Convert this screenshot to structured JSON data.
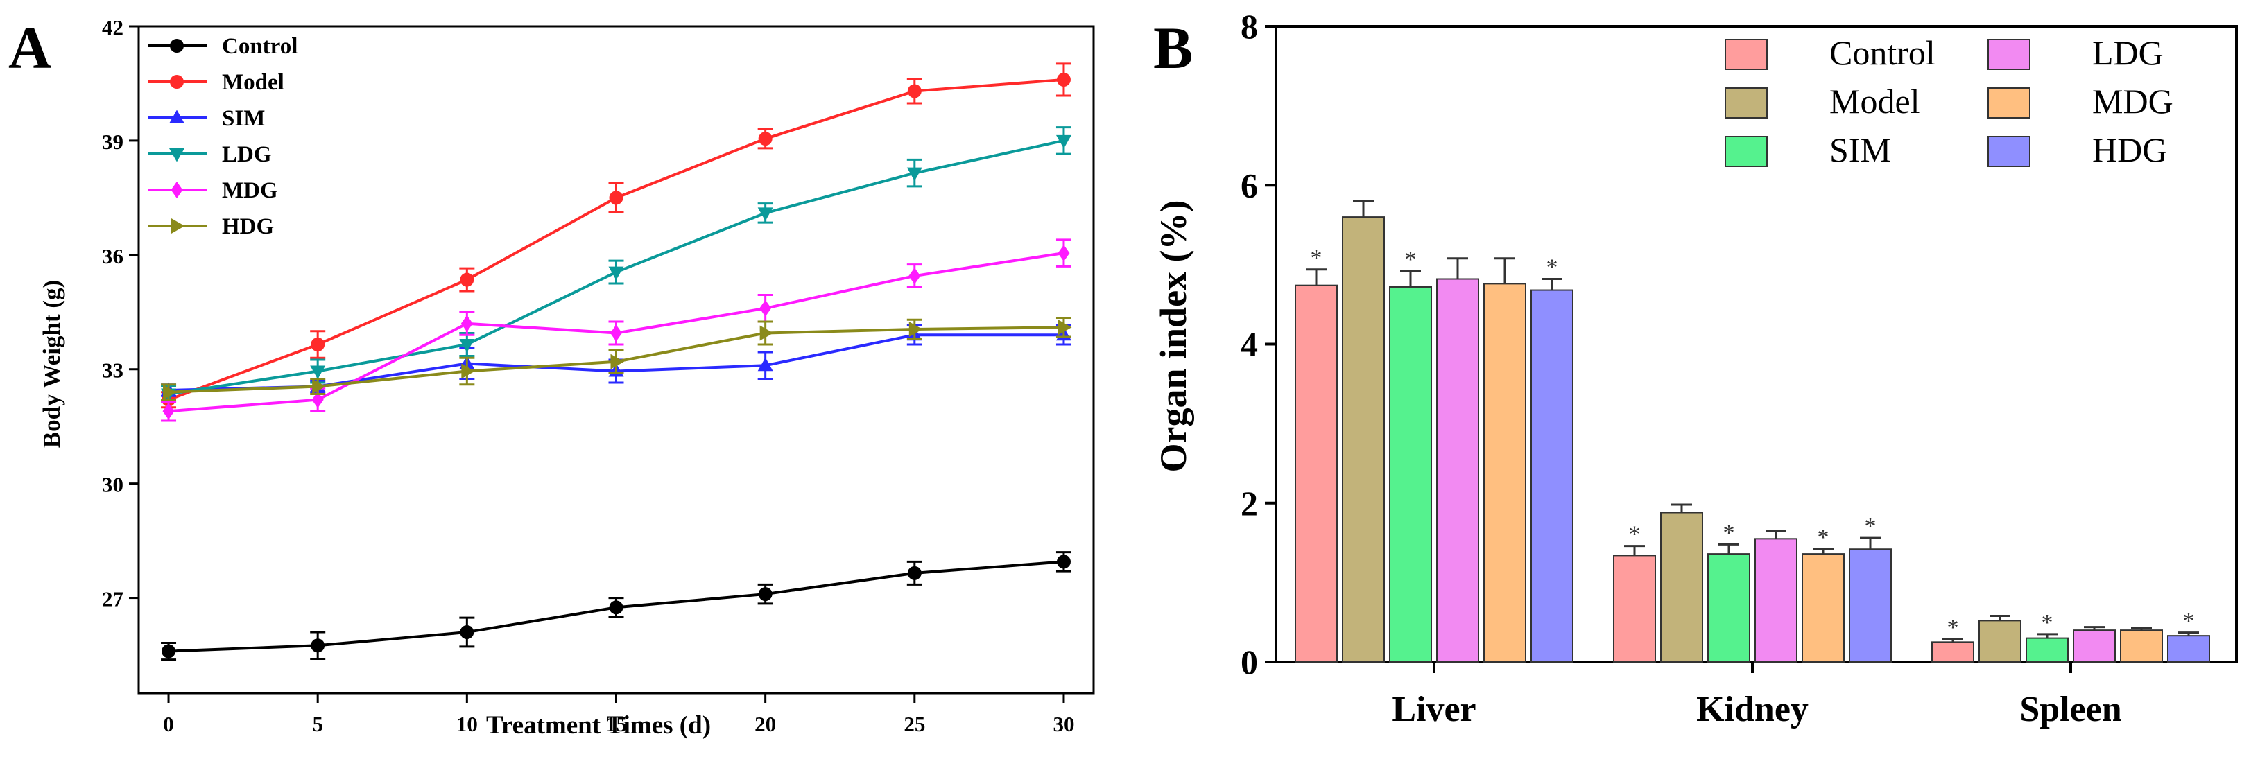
{
  "colors": {
    "axis": "#000000",
    "A_series": [
      "#000000",
      "#ff2a2a",
      "#2a2aff",
      "#0a9a9a",
      "#ff1aff",
      "#8a8a1a"
    ],
    "B_fill": [
      "#ff9d9d",
      "#c2b37a",
      "#55f28e",
      "#f28af2",
      "#ffbf80",
      "#8f8fff"
    ]
  },
  "chart_data": [
    {
      "type": "line",
      "panel_label": "A",
      "title": "",
      "xlabel": "Treatment Times (d)",
      "ylabel": "Body Weight (g)",
      "x": [
        0,
        5,
        10,
        15,
        20,
        25,
        30
      ],
      "x_ticks": [
        "0",
        "5",
        "10",
        "15",
        "20",
        "25",
        "30"
      ],
      "xlim": [
        -1,
        31
      ],
      "ylim": [
        24.5,
        42
      ],
      "y_ticks": [
        27,
        30,
        33,
        36,
        39,
        42
      ],
      "y_tick_labels": [
        "27",
        "30",
        "33",
        "36",
        "39",
        "42"
      ],
      "legend_position": "top-left",
      "series": [
        {
          "name": "Control",
          "marker": "circle",
          "values": [
            25.6,
            25.75,
            26.1,
            26.75,
            27.1,
            27.65,
            27.95
          ],
          "errors": [
            0.22,
            0.35,
            0.38,
            0.25,
            0.25,
            0.3,
            0.25
          ]
        },
        {
          "name": "Model",
          "marker": "circle",
          "values": [
            32.2,
            33.65,
            35.35,
            37.5,
            39.05,
            40.3,
            40.6
          ],
          "errors": [
            0.2,
            0.35,
            0.3,
            0.38,
            0.25,
            0.32,
            0.42
          ]
        },
        {
          "name": "SIM",
          "marker": "triangle",
          "values": [
            32.45,
            32.55,
            33.15,
            32.95,
            33.1,
            33.9,
            33.9
          ],
          "errors": [
            0.15,
            0.15,
            0.4,
            0.3,
            0.35,
            0.25,
            0.25
          ]
        },
        {
          "name": "LDG",
          "marker": "tri-down",
          "values": [
            32.35,
            32.95,
            33.65,
            35.55,
            37.1,
            38.15,
            39.0
          ],
          "errors": [
            0.2,
            0.3,
            0.3,
            0.3,
            0.25,
            0.35,
            0.35
          ]
        },
        {
          "name": "MDG",
          "marker": "diamond",
          "values": [
            31.9,
            32.2,
            34.2,
            33.95,
            34.6,
            35.45,
            36.05
          ],
          "errors": [
            0.25,
            0.3,
            0.3,
            0.3,
            0.35,
            0.3,
            0.35
          ]
        },
        {
          "name": "HDG",
          "marker": "tri-right",
          "values": [
            32.4,
            32.55,
            32.95,
            33.2,
            33.95,
            34.05,
            34.1
          ],
          "errors": [
            0.2,
            0.2,
            0.35,
            0.3,
            0.3,
            0.25,
            0.25
          ]
        }
      ]
    },
    {
      "type": "bar",
      "panel_label": "B",
      "title": "",
      "xlabel": "",
      "ylabel": "Organ index (%)",
      "categories": [
        "Liver",
        "Kidney",
        "Spleen"
      ],
      "ylim": [
        0,
        8
      ],
      "y_ticks": [
        0,
        2,
        4,
        6,
        8
      ],
      "y_tick_labels": [
        "0",
        "2",
        "4",
        "6",
        "8"
      ],
      "legend_position": "top-right",
      "significance_marker": "*",
      "series": [
        {
          "name": "Control",
          "values": [
            4.74,
            1.34,
            0.25
          ],
          "errors": [
            0.2,
            0.12,
            0.04
          ],
          "significant": [
            true,
            true,
            true
          ]
        },
        {
          "name": "Model",
          "values": [
            5.6,
            1.88,
            0.52
          ],
          "errors": [
            0.2,
            0.1,
            0.06
          ],
          "significant": [
            false,
            false,
            false
          ]
        },
        {
          "name": "SIM",
          "values": [
            4.72,
            1.36,
            0.3
          ],
          "errors": [
            0.2,
            0.12,
            0.05
          ],
          "significant": [
            true,
            true,
            true
          ]
        },
        {
          "name": "LDG",
          "values": [
            4.82,
            1.55,
            0.4
          ],
          "errors": [
            0.26,
            0.1,
            0.04
          ],
          "significant": [
            false,
            false,
            false
          ]
        },
        {
          "name": "MDG",
          "values": [
            4.76,
            1.36,
            0.4
          ],
          "errors": [
            0.32,
            0.06,
            0.03
          ],
          "significant": [
            false,
            true,
            false
          ]
        },
        {
          "name": "HDG",
          "values": [
            4.68,
            1.42,
            0.33
          ],
          "errors": [
            0.14,
            0.14,
            0.04
          ],
          "significant": [
            true,
            true,
            true
          ]
        }
      ]
    }
  ]
}
